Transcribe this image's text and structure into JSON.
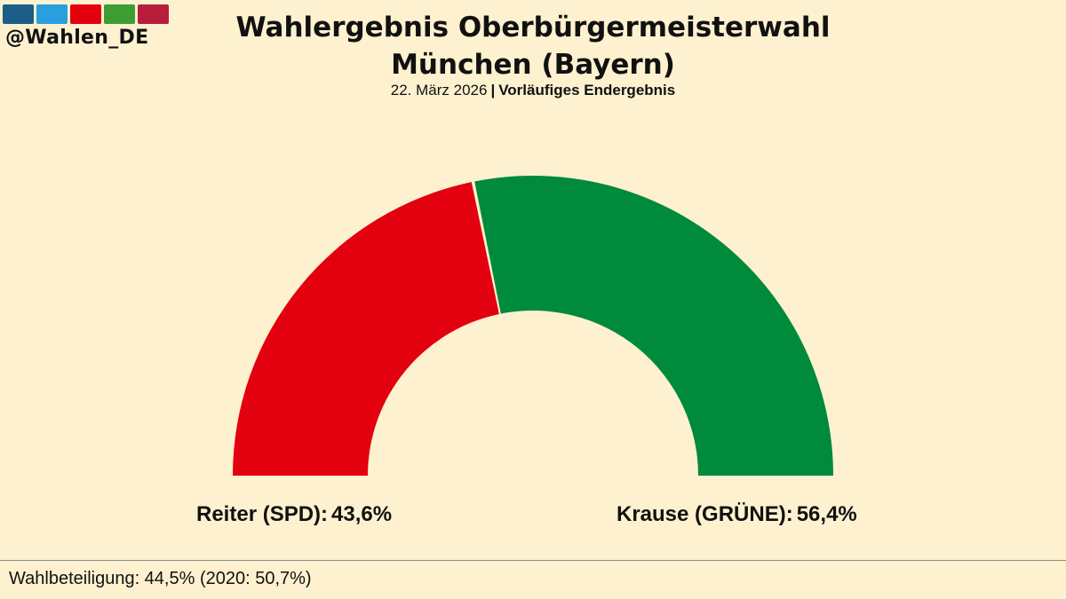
{
  "branding": {
    "handle": "@Wahlen_DE",
    "bar_colors": [
      "#1B5E87",
      "#2A9FE0",
      "#E3000F",
      "#3E9C35",
      "#B81E3C"
    ]
  },
  "header": {
    "title_line1": "Wahlergebnis Oberbürgermeisterwahl",
    "title_line2": "München (Bayern)",
    "date": "22. März 2026",
    "separator": "|",
    "status": "Vorläufiges Endergebnis"
  },
  "chart_data": {
    "type": "pie",
    "style": "half-donut",
    "series": [
      {
        "name": "Reiter (SPD):",
        "value": 43.6,
        "value_label": "43,6%",
        "color": "#E3000F"
      },
      {
        "name": "Krause (GRÜNE):",
        "value": 56.4,
        "value_label": "56,4%",
        "color": "#008A3B"
      }
    ]
  },
  "footer": {
    "turnout": "Wahlbeteiligung: 44,5% (2020: 50,7%)"
  }
}
